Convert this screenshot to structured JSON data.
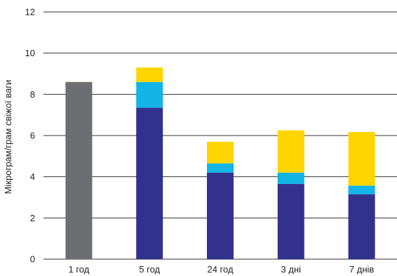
{
  "chart_data": {
    "type": "bar",
    "stacked": true,
    "title": "",
    "xlabel": "",
    "ylabel": "Мікрограм/грам свіжої ваги",
    "ylim": [
      0,
      12
    ],
    "yticks": [
      "0",
      "2",
      "4",
      "6",
      "8",
      "10",
      "12"
    ],
    "grid": "horizontal",
    "legend": "none",
    "categories": [
      "1 год",
      "5 год",
      "24 год",
      "3 дні",
      "7 днів"
    ],
    "series": [
      {
        "color": "#6d6e71",
        "values": [
          8.6,
          0,
          0,
          0,
          0
        ]
      },
      {
        "color": "#33318e",
        "values": [
          0,
          7.35,
          4.2,
          3.65,
          3.15
        ]
      },
      {
        "color": "#12b5e6",
        "values": [
          0,
          1.25,
          0.45,
          0.55,
          0.42
        ]
      },
      {
        "color": "#ffd500",
        "values": [
          0,
          0.7,
          1.05,
          2.05,
          2.6
        ]
      }
    ]
  }
}
